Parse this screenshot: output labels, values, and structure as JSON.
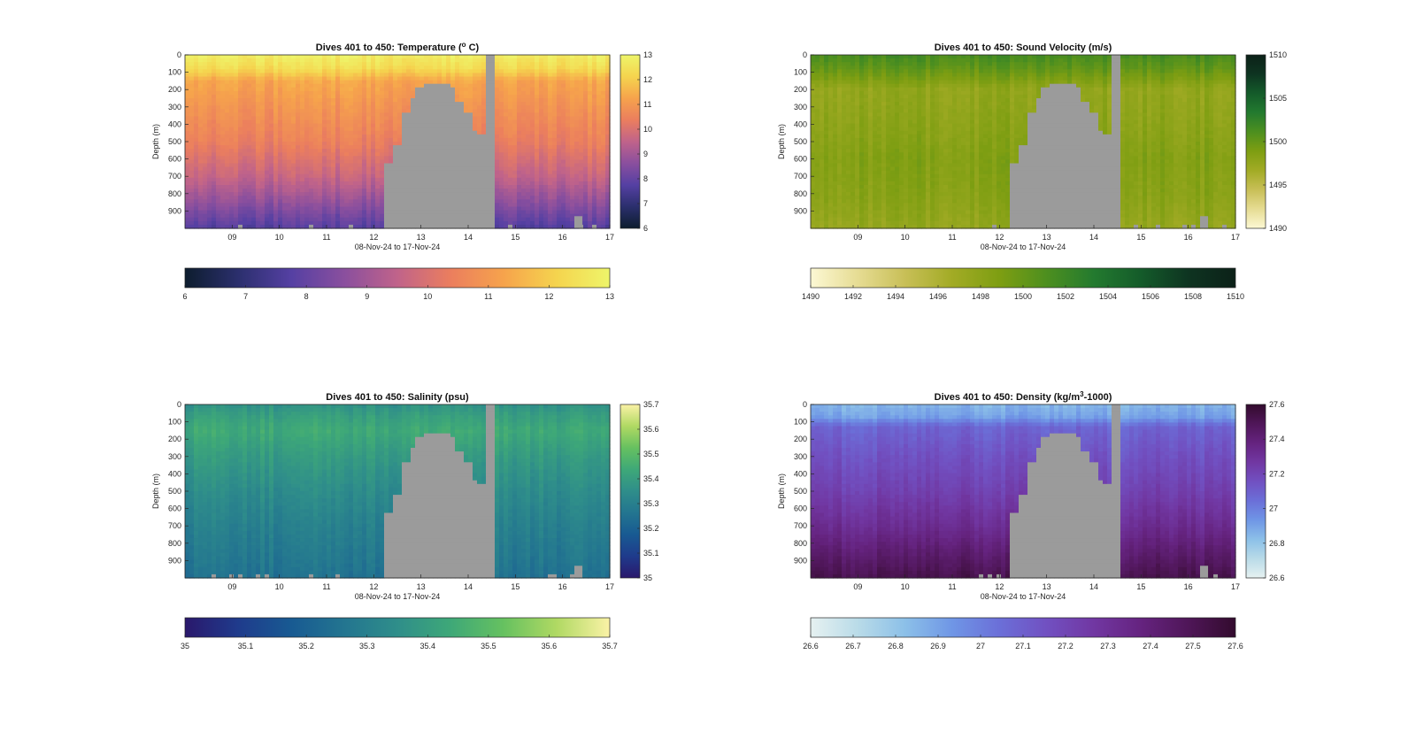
{
  "figure": {
    "shared": {
      "ylabel": "Depth (m)",
      "xlabel": "08-Nov-24 to 17-Nov-24",
      "y_ticks": [
        0,
        100,
        200,
        300,
        400,
        500,
        600,
        700,
        800,
        900
      ],
      "x_ticks": [
        "09",
        "10",
        "11",
        "12",
        "13",
        "14",
        "15",
        "16",
        "17"
      ],
      "missing_color": "#9b9b9b"
    }
  },
  "chart_data": [
    {
      "type": "heatmap",
      "title_prefix": "Dives 401 to 450: Temperature (",
      "title_sup": "o",
      "title_suffix": " C)",
      "variable": "temperature",
      "xlabel": "08-Nov-24 to 17-Nov-24",
      "ylabel": "Depth (m)",
      "xlim": [
        "08-Nov-24",
        "17-Nov-24"
      ],
      "ylim": [
        1000,
        0
      ],
      "clim": [
        6,
        13
      ],
      "colorbar_side_ticks": [
        "6",
        "7",
        "8",
        "9",
        "10",
        "11",
        "12",
        "13"
      ],
      "colorbar_bottom_ticks": [
        "6",
        "7",
        "8",
        "9",
        "10",
        "11",
        "12",
        "13"
      ],
      "colormap": [
        "#0d1d2e",
        "#2b2f6d",
        "#5540a3",
        "#8a4f9e",
        "#c0638a",
        "#eb7e5e",
        "#f6a34c",
        "#f5d44e",
        "#eef56a"
      ],
      "profile": [
        {
          "depth": 0,
          "value": 12.8
        },
        {
          "depth": 80,
          "value": 12.3
        },
        {
          "depth": 150,
          "value": 11.3
        },
        {
          "depth": 300,
          "value": 10.9
        },
        {
          "depth": 500,
          "value": 10.4
        },
        {
          "depth": 700,
          "value": 9.6
        },
        {
          "depth": 850,
          "value": 8.7
        },
        {
          "depth": 1000,
          "value": 7.7
        }
      ]
    },
    {
      "type": "heatmap",
      "title_prefix": "Dives 401 to 450: Sound Velocity (m/s)",
      "title_sup": "",
      "title_suffix": "",
      "variable": "sound_velocity",
      "xlabel": "08-Nov-24 to 17-Nov-24",
      "ylabel": "Depth (m)",
      "xlim": [
        "08-Nov-24",
        "17-Nov-24"
      ],
      "ylim": [
        1000,
        0
      ],
      "clim": [
        1490,
        1510
      ],
      "colorbar_side_ticks": [
        "1490",
        "1495",
        "1500",
        "1505",
        "1510"
      ],
      "colorbar_bottom_ticks": [
        "1490",
        "1492",
        "1494",
        "1496",
        "1498",
        "1500",
        "1502",
        "1504",
        "1506",
        "1508",
        "1510"
      ],
      "colormap": [
        "#fcf8d4",
        "#e6dc93",
        "#c8bf57",
        "#a2ab25",
        "#7e9e12",
        "#4d8f1f",
        "#237a2f",
        "#145b2a",
        "#0e3421",
        "#0c2118"
      ],
      "profile": [
        {
          "depth": 0,
          "value": 1501.5
        },
        {
          "depth": 80,
          "value": 1500.2
        },
        {
          "depth": 200,
          "value": 1497.6
        },
        {
          "depth": 400,
          "value": 1498.0
        },
        {
          "depth": 600,
          "value": 1498.6
        },
        {
          "depth": 800,
          "value": 1498.3
        },
        {
          "depth": 1000,
          "value": 1497.5
        }
      ]
    },
    {
      "type": "heatmap",
      "title_prefix": "Dives 401 to 450: Salinity (psu)",
      "title_sup": "",
      "title_suffix": "",
      "variable": "salinity",
      "xlabel": "08-Nov-24 to 17-Nov-24",
      "ylabel": "Depth (m)",
      "xlim": [
        "08-Nov-24",
        "17-Nov-24"
      ],
      "ylim": [
        1000,
        0
      ],
      "clim": [
        35,
        35.7
      ],
      "colorbar_side_ticks": [
        "35",
        "35.1",
        "35.2",
        "35.3",
        "35.4",
        "35.5",
        "35.6",
        "35.7"
      ],
      "colorbar_bottom_ticks": [
        "35",
        "35.1",
        "35.2",
        "35.3",
        "35.4",
        "35.5",
        "35.6",
        "35.7"
      ],
      "colormap": [
        "#2a186c",
        "#1f3b8c",
        "#185a92",
        "#237590",
        "#2f8e8a",
        "#3ea878",
        "#66c160",
        "#b0d963",
        "#faf2a6"
      ],
      "profile": [
        {
          "depth": 0,
          "value": 35.36
        },
        {
          "depth": 60,
          "value": 35.4
        },
        {
          "depth": 150,
          "value": 35.44
        },
        {
          "depth": 300,
          "value": 35.39
        },
        {
          "depth": 500,
          "value": 35.34
        },
        {
          "depth": 700,
          "value": 35.3
        },
        {
          "depth": 900,
          "value": 35.27
        },
        {
          "depth": 1000,
          "value": 35.25
        }
      ]
    },
    {
      "type": "heatmap",
      "title_prefix": "Dives 401 to 450: Density (kg/m",
      "title_sup": "3",
      "title_suffix": "-1000)",
      "variable": "density",
      "xlabel": "08-Nov-24 to 17-Nov-24",
      "ylabel": "Depth (m)",
      "xlim": [
        "08-Nov-24",
        "17-Nov-24"
      ],
      "ylim": [
        1000,
        0
      ],
      "clim": [
        26.6,
        27.6
      ],
      "colorbar_side_ticks": [
        "26.6",
        "26.8",
        "27",
        "27.2",
        "27.4",
        "27.6"
      ],
      "colorbar_bottom_ticks": [
        "26.6",
        "26.7",
        "26.8",
        "26.9",
        "27",
        "27.1",
        "27.2",
        "27.3",
        "27.4",
        "27.5",
        "27.6"
      ],
      "colormap": [
        "#e6f1f1",
        "#b9dbe8",
        "#8cc0e8",
        "#6f96e6",
        "#6b6fd8",
        "#7150c1",
        "#7137a2",
        "#65237f",
        "#4f1658",
        "#330b2e"
      ],
      "profile": [
        {
          "depth": 0,
          "value": 26.85
        },
        {
          "depth": 70,
          "value": 26.9
        },
        {
          "depth": 130,
          "value": 27.08
        },
        {
          "depth": 300,
          "value": 27.15
        },
        {
          "depth": 500,
          "value": 27.22
        },
        {
          "depth": 700,
          "value": 27.32
        },
        {
          "depth": 850,
          "value": 27.42
        },
        {
          "depth": 1000,
          "value": 27.52
        }
      ]
    }
  ]
}
